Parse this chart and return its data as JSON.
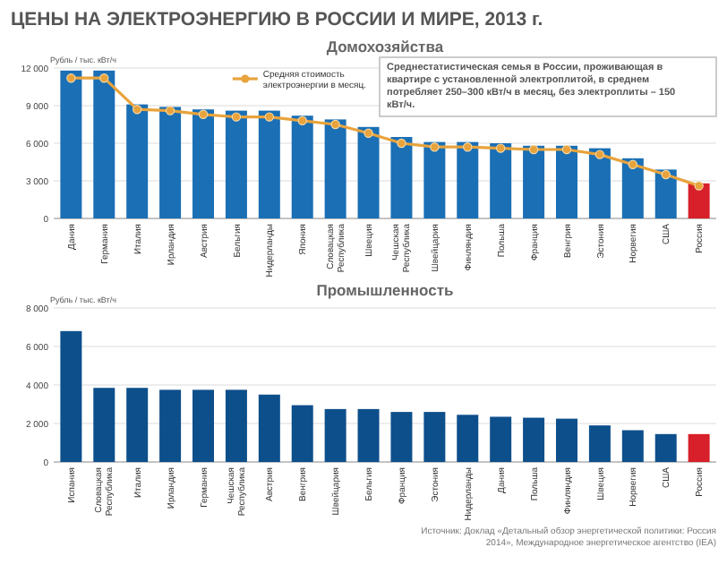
{
  "chart_data": [
    {
      "type": "bar",
      "title": "ЦЕНЫ НА ЭЛЕКТРОЭНЕРГИЮ В РОССИИ И МИРЕ, 2013 г.",
      "subtitle": "Домохозяйства",
      "ylabel": "Рубль / тыс. кВт/ч",
      "categories": [
        "Дания",
        "Германия",
        "Италия",
        "Ирландия",
        "Австрия",
        "Бельгия",
        "Нидерланды",
        "Япония",
        "Словацкая Республика",
        "Швеция",
        "Чешская Республика",
        "Швейцария",
        "Финляндия",
        "Польша",
        "Франция",
        "Венгрия",
        "Эстония",
        "Норвегия",
        "США",
        "Россия"
      ],
      "series": [
        {
          "values": [
            11800,
            11800,
            9100,
            8900,
            8700,
            8600,
            8600,
            8200,
            7900,
            7300,
            6500,
            6100,
            6100,
            6000,
            5800,
            5800,
            5600,
            4800,
            3900,
            2800
          ],
          "colors": [
            "#1a6fb5",
            "#1a6fb5",
            "#1a6fb5",
            "#1a6fb5",
            "#1a6fb5",
            "#1a6fb5",
            "#1a6fb5",
            "#1a6fb5",
            "#1a6fb5",
            "#1a6fb5",
            "#1a6fb5",
            "#1a6fb5",
            "#1a6fb5",
            "#1a6fb5",
            "#1a6fb5",
            "#1a6fb5",
            "#1a6fb5",
            "#1a6fb5",
            "#1a6fb5",
            "#d7202a"
          ]
        },
        {
          "type": "line",
          "name": "Средняя стоимость электроэнергии в месяц.",
          "color": "#e8a33c",
          "marker": "circle",
          "values": [
            11200,
            11200,
            8700,
            8600,
            8300,
            8100,
            8100,
            7800,
            7500,
            6800,
            6000,
            5700,
            5700,
            5600,
            5500,
            5500,
            5100,
            4300,
            3500,
            2600
          ]
        }
      ],
      "ylim": [
        0,
        12000
      ],
      "yticks": [
        0,
        {
          "value": 3000,
          "label": "3 000"
        },
        {
          "value": 6000,
          "label": "6 000"
        },
        {
          "value": 9000,
          "label": "9 000"
        },
        {
          "value": 12000,
          "label": "12 000"
        }
      ],
      "grid": "y",
      "legend": "top",
      "annotations": [
        "Среднестатистическая семья в России, проживающая в квартире с установленной электроплитой, в среднем потребляет 250–300 кВт/ч в месяц, без электроплиты – 150 кВт/ч."
      ]
    },
    {
      "type": "bar",
      "title": "Промышленность",
      "ylabel": "Рубль / тыс. кВт/ч",
      "categories": [
        "Испания",
        "Словацкая Республика",
        "Италия",
        "Ирландия",
        "Германия",
        "Чешская Республика",
        "Австрия",
        "Венгрия",
        "Швейцария",
        "Бельгия",
        "Франция",
        "Эстония",
        "Нидерланды",
        "Дания",
        "Польша",
        "Финляндия",
        "Швеция",
        "Норвегия",
        "США",
        "Россия"
      ],
      "series": [
        {
          "values": [
            6800,
            3850,
            3850,
            3750,
            3750,
            3750,
            3500,
            2950,
            2750,
            2750,
            2600,
            2600,
            2450,
            2350,
            2300,
            2250,
            1900,
            1650,
            1450,
            1450
          ],
          "colors": [
            "#0d4f8b",
            "#0d4f8b",
            "#0d4f8b",
            "#0d4f8b",
            "#0d4f8b",
            "#0d4f8b",
            "#0d4f8b",
            "#0d4f8b",
            "#0d4f8b",
            "#0d4f8b",
            "#0d4f8b",
            "#0d4f8b",
            "#0d4f8b",
            "#0d4f8b",
            "#0d4f8b",
            "#0d4f8b",
            "#0d4f8b",
            "#0d4f8b",
            "#0d4f8b",
            "#d7202a"
          ]
        }
      ],
      "ylim": [
        0,
        8000
      ],
      "yticks": [
        0,
        {
          "value": 2000,
          "label": "2 000"
        },
        {
          "value": 4000,
          "label": "4 000"
        },
        {
          "value": 6000,
          "label": "6 000"
        },
        {
          "value": 8000,
          "label": "8 000"
        }
      ],
      "grid": "y",
      "annotations": [
        "Источник: Доклад «Детальный обзор энергетической политики: Россия 2014», Международное энергетическое агентство (IEA)"
      ]
    }
  ]
}
